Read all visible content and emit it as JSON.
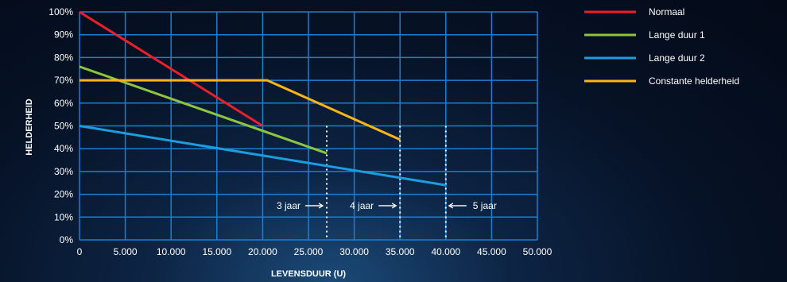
{
  "colors": {
    "grid": "#1a7fd0",
    "marker_line": "#ffffff"
  },
  "chart_data": {
    "type": "line",
    "xlabel": "LEVENSDUUR (U)",
    "ylabel": "HELDERHEID",
    "xlim": [
      0,
      50000
    ],
    "ylim": [
      0,
      100
    ],
    "x_ticks": [
      0,
      5000,
      10000,
      15000,
      20000,
      25000,
      30000,
      35000,
      40000,
      45000,
      50000
    ],
    "x_tick_labels": [
      "0",
      "5.000",
      "10.000",
      "15.000",
      "20.000",
      "25.000",
      "30.000",
      "35.000",
      "40.000",
      "45.000",
      "50.000"
    ],
    "y_ticks": [
      0,
      10,
      20,
      30,
      40,
      50,
      60,
      70,
      80,
      90,
      100
    ],
    "y_tick_labels": [
      "0%",
      "10%",
      "20%",
      "30%",
      "40%",
      "50%",
      "60%",
      "70%",
      "80%",
      "90%",
      "100%"
    ],
    "grid": true,
    "legend_position": "top-right",
    "series": [
      {
        "name": "Normaal",
        "color": "#e8202a",
        "points": [
          [
            0,
            100
          ],
          [
            20000,
            50
          ]
        ]
      },
      {
        "name": "Lange duur 1",
        "color": "#8cc63f",
        "points": [
          [
            0,
            76
          ],
          [
            27000,
            38
          ]
        ]
      },
      {
        "name": "Lange duur 2",
        "color": "#1a9ee0",
        "points": [
          [
            0,
            50
          ],
          [
            40000,
            24
          ]
        ]
      },
      {
        "name": "Constante helderheid",
        "color": "#fbb419",
        "points": [
          [
            0,
            70
          ],
          [
            20500,
            70
          ],
          [
            35000,
            44
          ]
        ]
      }
    ],
    "annotations": [
      {
        "label": "3 jaar",
        "x": 27000,
        "arrow": "right"
      },
      {
        "label": "4 jaar",
        "x": 35000,
        "arrow": "right"
      },
      {
        "label": "5 jaar",
        "x": 40000,
        "arrow": "left"
      }
    ]
  }
}
